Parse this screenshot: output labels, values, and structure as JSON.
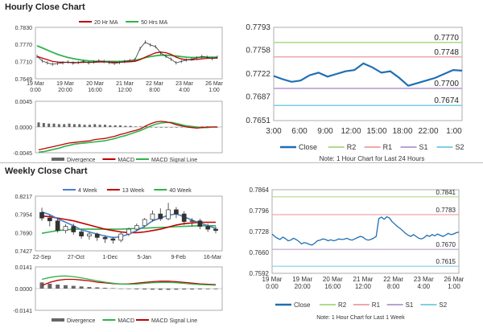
{
  "sections": {
    "hourly_title": "Hourly Close Chart",
    "weekly_title": "Weekly Close Chart"
  },
  "colors": {
    "ma_red": "#c00000",
    "ma_green": "#2fb34a",
    "ma_blue": "#4a7ec8",
    "close": "#1f6fb3",
    "r2": "#b5d98c",
    "r1": "#f0a8a8",
    "s1": "#b8a3d1",
    "s2": "#7fd0e6",
    "divergence": "#666666"
  },
  "chart_data": [
    {
      "id": "hourly_price",
      "type": "line",
      "legend": [
        "20 Hr MA",
        "50 Hrs MA"
      ],
      "ylim": [
        0.7649,
        0.783
      ],
      "yticks": [
        "0.7830",
        "0.7770",
        "0.7710",
        "0.7649"
      ],
      "xticks": [
        "19 Mar\n0:00",
        "19 Mar\n20:00",
        "20 Mar\n16:00",
        "21 Mar\n12:00",
        "22 Mar\n8:00",
        "23 Mar\n4:00",
        "26 Mar\n1:00"
      ],
      "price": [
        0.7728,
        0.7712,
        0.7705,
        0.77,
        0.7703,
        0.7705,
        0.7708,
        0.7704,
        0.7706,
        0.771,
        0.7705,
        0.7708,
        0.7712,
        0.771,
        0.7706,
        0.7703,
        0.7706,
        0.771,
        0.7713,
        0.7716,
        0.7755,
        0.7778,
        0.7768,
        0.7762,
        0.774,
        0.7728,
        0.7718,
        0.7705,
        0.771,
        0.7715,
        0.7718,
        0.7722,
        0.7728,
        0.7725,
        0.772,
        0.7725
      ],
      "series": [
        {
          "name": "20 Hr MA",
          "values": [
            0.7728,
            0.7722,
            0.7716,
            0.771,
            0.7708,
            0.7707,
            0.7707,
            0.7706,
            0.7706,
            0.7707,
            0.7707,
            0.7707,
            0.7708,
            0.7708,
            0.7708,
            0.7707,
            0.7707,
            0.7708,
            0.7709,
            0.771,
            0.7716,
            0.7725,
            0.7733,
            0.774,
            0.7743,
            0.7741,
            0.7735,
            0.7725,
            0.7719,
            0.7716,
            0.7716,
            0.7717,
            0.7719,
            0.7721,
            0.7721,
            0.7722
          ]
        },
        {
          "name": "50 Hrs MA",
          "values": [
            0.7765,
            0.7758,
            0.775,
            0.7742,
            0.7735,
            0.7729,
            0.7724,
            0.772,
            0.7717,
            0.7714,
            0.7712,
            0.7711,
            0.771,
            0.771,
            0.771,
            0.771,
            0.771,
            0.7711,
            0.7712,
            0.7714,
            0.7718,
            0.7723,
            0.7727,
            0.773,
            0.7732,
            0.7732,
            0.7731,
            0.7729,
            0.7727,
            0.7725,
            0.7724,
            0.7724,
            0.7725,
            0.7725,
            0.7725,
            0.7725
          ]
        }
      ]
    },
    {
      "id": "hourly_macd",
      "type": "bar",
      "legend": [
        "Divergence",
        "MACD",
        "MACD Signal Line"
      ],
      "ylim": [
        -0.0045,
        0.0045
      ],
      "yticks": [
        "0.0045",
        "0.0000",
        "-0.0045"
      ],
      "divergence": [
        0.0008,
        0.0007,
        0.0006,
        0.0006,
        0.0005,
        0.0005,
        0.0006,
        0.0005,
        0.0005,
        0.0004,
        0.0004,
        0.0005,
        0.0004,
        0.0004,
        0.0003,
        0.0003,
        0.0003,
        0.0002,
        0.0002,
        0.0001,
        0.0001,
        0.0001,
        0.0,
        -0.0001,
        -0.0001,
        -0.0001,
        -0.0001,
        -0.0001,
        0.0,
        0.0,
        0.0,
        0.0,
        0.0001,
        0.0001,
        0.0,
        0.0
      ],
      "series": [
        {
          "name": "MACD",
          "values": [
            -0.004,
            -0.0038,
            -0.0036,
            -0.0034,
            -0.0032,
            -0.003,
            -0.0028,
            -0.0027,
            -0.0026,
            -0.0025,
            -0.0024,
            -0.0022,
            -0.0021,
            -0.002,
            -0.0018,
            -0.0016,
            -0.0013,
            -0.0011,
            -0.0008,
            -0.0006,
            -0.0003,
            0.0002,
            0.0006,
            0.0009,
            0.001,
            0.0009,
            0.0007,
            0.0004,
            0.0002,
            0.0,
            -0.0001,
            -0.0002,
            -0.0001,
            0.0,
            0.0,
            0.0
          ]
        },
        {
          "name": "MACD Signal Line",
          "values": [
            -0.0044,
            -0.0043,
            -0.0041,
            -0.0039,
            -0.0037,
            -0.0034,
            -0.0032,
            -0.003,
            -0.0029,
            -0.0028,
            -0.0027,
            -0.0026,
            -0.0025,
            -0.0024,
            -0.0022,
            -0.002,
            -0.0017,
            -0.0015,
            -0.0012,
            -0.0009,
            -0.0006,
            -0.0002,
            0.0002,
            0.0005,
            0.0007,
            0.0008,
            0.0008,
            0.0006,
            0.0004,
            0.0002,
            0.0001,
            0.0,
            -0.0001,
            -0.0001,
            0.0,
            0.0
          ]
        }
      ]
    },
    {
      "id": "hourly_pivots",
      "type": "line",
      "ylim": [
        0.7651,
        0.7793
      ],
      "yticks": [
        "0.7793",
        "0.7758",
        "0.7722",
        "0.7687",
        "0.7651"
      ],
      "xticks": [
        "3:00",
        "6:00",
        "9:00",
        "12:00",
        "15:00",
        "18:00",
        "22:00",
        "1:00"
      ],
      "legend": [
        "Close",
        "R2",
        "R1",
        "S1",
        "S2"
      ],
      "levels": {
        "R2": 0.777,
        "R1": 0.7748,
        "S1": 0.77,
        "S2": 0.7674
      },
      "level_labels": {
        "R2": "0.7770",
        "R1": "0.7748",
        "S1": "0.7700",
        "S2": "0.7674"
      },
      "close": [
        0.7719,
        0.7714,
        0.771,
        0.7712,
        0.772,
        0.7724,
        0.7718,
        0.7722,
        0.7726,
        0.7728,
        0.7738,
        0.7732,
        0.7724,
        0.7726,
        0.7716,
        0.7704,
        0.7708,
        0.7712,
        0.7716,
        0.7722,
        0.7728,
        0.7727
      ],
      "note": "Note: 1 Hour Chart for Last 24 Hours"
    },
    {
      "id": "weekly_price",
      "type": "line",
      "legend": [
        "4 Week",
        "13 Week",
        "40 Week"
      ],
      "ylim": [
        0.7427,
        0.8217
      ],
      "yticks": [
        "0.8217",
        "0.7954",
        "0.7690",
        "0.7427"
      ],
      "xticks": [
        "22-Sep",
        "27-Oct",
        "1-Dec",
        "5-Jan",
        "9-Feb",
        "16-Mar"
      ],
      "candles": [
        {
          "o": 0.798,
          "c": 0.79,
          "h": 0.805,
          "l": 0.786
        },
        {
          "o": 0.79,
          "c": 0.786,
          "h": 0.795,
          "l": 0.778
        },
        {
          "o": 0.786,
          "c": 0.772,
          "h": 0.79,
          "l": 0.769
        },
        {
          "o": 0.772,
          "c": 0.778,
          "h": 0.781,
          "l": 0.768
        },
        {
          "o": 0.778,
          "c": 0.77,
          "h": 0.782,
          "l": 0.766
        },
        {
          "o": 0.77,
          "c": 0.764,
          "h": 0.773,
          "l": 0.76
        },
        {
          "o": 0.764,
          "c": 0.767,
          "h": 0.77,
          "l": 0.759
        },
        {
          "o": 0.767,
          "c": 0.762,
          "h": 0.769,
          "l": 0.757
        },
        {
          "o": 0.762,
          "c": 0.76,
          "h": 0.765,
          "l": 0.754
        },
        {
          "o": 0.76,
          "c": 0.758,
          "h": 0.763,
          "l": 0.753
        },
        {
          "o": 0.758,
          "c": 0.767,
          "h": 0.77,
          "l": 0.755
        },
        {
          "o": 0.767,
          "c": 0.774,
          "h": 0.776,
          "l": 0.764
        },
        {
          "o": 0.774,
          "c": 0.779,
          "h": 0.782,
          "l": 0.771
        },
        {
          "o": 0.779,
          "c": 0.788,
          "h": 0.79,
          "l": 0.777
        },
        {
          "o": 0.788,
          "c": 0.796,
          "h": 0.801,
          "l": 0.785
        },
        {
          "o": 0.796,
          "c": 0.789,
          "h": 0.804,
          "l": 0.786
        },
        {
          "o": 0.789,
          "c": 0.802,
          "h": 0.812,
          "l": 0.787
        },
        {
          "o": 0.802,
          "c": 0.796,
          "h": 0.806,
          "l": 0.79
        },
        {
          "o": 0.796,
          "c": 0.785,
          "h": 0.8,
          "l": 0.78
        },
        {
          "o": 0.785,
          "c": 0.786,
          "h": 0.79,
          "l": 0.778
        },
        {
          "o": 0.786,
          "c": 0.778,
          "h": 0.789,
          "l": 0.774
        },
        {
          "o": 0.778,
          "c": 0.774,
          "h": 0.782,
          "l": 0.77
        },
        {
          "o": 0.774,
          "c": 0.772,
          "h": 0.778,
          "l": 0.768
        }
      ],
      "series": [
        {
          "name": "4 Week",
          "values": [
            0.799,
            0.795,
            0.789,
            0.784,
            0.779,
            0.773,
            0.77,
            0.767,
            0.764,
            0.762,
            0.763,
            0.767,
            0.772,
            0.778,
            0.786,
            0.79,
            0.794,
            0.796,
            0.792,
            0.787,
            0.783,
            0.779,
            0.775
          ]
        },
        {
          "name": "13 Week",
          "values": [
            0.793,
            0.792,
            0.79,
            0.788,
            0.786,
            0.783,
            0.78,
            0.777,
            0.774,
            0.772,
            0.77,
            0.769,
            0.769,
            0.77,
            0.772,
            0.774,
            0.777,
            0.78,
            0.782,
            0.783,
            0.784,
            0.784,
            0.784
          ]
        },
        {
          "name": "40 Week",
          "values": [
            0.768,
            0.77,
            0.772,
            0.773,
            0.774,
            0.774,
            0.774,
            0.774,
            0.774,
            0.774,
            0.774,
            0.7745,
            0.775,
            0.7755,
            0.776,
            0.7765,
            0.777,
            0.7775,
            0.778,
            0.7785,
            0.779,
            0.779,
            0.779
          ]
        }
      ]
    },
    {
      "id": "weekly_macd",
      "type": "bar",
      "legend": [
        "Divergence",
        "MACD",
        "MACD Signal Line"
      ],
      "ylim": [
        -0.0141,
        0.0141
      ],
      "yticks": [
        "0.0141",
        "0.0000",
        "-0.0141"
      ],
      "divergence": [
        0.004,
        0.0032,
        0.0026,
        0.0022,
        0.0018,
        0.0014,
        0.001,
        0.0008,
        0.0005,
        0.0003,
        0.0,
        -0.0003,
        -0.0005,
        -0.0006,
        -0.0007,
        -0.0008,
        -0.0008,
        -0.0007,
        -0.0006,
        -0.0006,
        -0.0005,
        -0.0004,
        -0.0004
      ],
      "series": [
        {
          "name": "MACD",
          "values": [
            0.006,
            0.0072,
            0.008,
            0.0082,
            0.0078,
            0.007,
            0.006,
            0.005,
            0.0042,
            0.0035,
            0.003,
            0.0028,
            0.003,
            0.0034,
            0.0038,
            0.004,
            0.004,
            0.0038,
            0.0034,
            0.003,
            0.0026,
            0.0024,
            0.0022
          ]
        },
        {
          "name": "MACD Signal Line",
          "values": [
            0.002,
            0.004,
            0.0054,
            0.006,
            0.006,
            0.0056,
            0.005,
            0.0042,
            0.0037,
            0.0032,
            0.003,
            0.0031,
            0.0035,
            0.004,
            0.0045,
            0.0048,
            0.0048,
            0.0045,
            0.004,
            0.0036,
            0.0031,
            0.0028,
            0.0026
          ]
        }
      ]
    },
    {
      "id": "weekly_pivots",
      "type": "line",
      "ylim": [
        0.7592,
        0.7864
      ],
      "yticks": [
        "0.7864",
        "0.7796",
        "0.7728",
        "0.7660",
        "0.7592"
      ],
      "xticks": [
        "19 Mar\n0:00",
        "19 Mar\n20:00",
        "20 Mar\n16:00",
        "21 Mar\n12:00",
        "22 Mar\n8:00",
        "23 Mar\n4:00",
        "26 Mar\n1:00"
      ],
      "legend": [
        "Close",
        "R2",
        "R1",
        "S1",
        "S2"
      ],
      "levels": {
        "R2": 0.7841,
        "R1": 0.7783,
        "S1": 0.767,
        "S2": 0.7615
      },
      "level_labels": {
        "R2": "0.7841",
        "R1": "0.7783",
        "S1": "0.7670",
        "S2": "0.7615"
      },
      "close": [
        0.772,
        0.7712,
        0.7706,
        0.7702,
        0.771,
        0.7705,
        0.7698,
        0.77,
        0.7706,
        0.7702,
        0.7696,
        0.7688,
        0.7692,
        0.769,
        0.7686,
        0.7684,
        0.769,
        0.7698,
        0.77,
        0.7704,
        0.7702,
        0.7698,
        0.7701,
        0.7698,
        0.77,
        0.7704,
        0.7702,
        0.7703,
        0.7706,
        0.7702,
        0.77,
        0.7704,
        0.7708,
        0.7712,
        0.771,
        0.7703,
        0.77,
        0.7702,
        0.7706,
        0.7712,
        0.777,
        0.7775,
        0.7768,
        0.7776,
        0.7772,
        0.776,
        0.7752,
        0.7744,
        0.7738,
        0.773,
        0.7722,
        0.7716,
        0.7712,
        0.7718,
        0.7712,
        0.7706,
        0.7704,
        0.7708,
        0.7716,
        0.7712,
        0.7718,
        0.7714,
        0.772,
        0.7716,
        0.7712,
        0.7716,
        0.7722,
        0.7718,
        0.772,
        0.7724,
        0.7726
      ],
      "note": "Note: 1 Hour Chart for Last 1 Week"
    }
  ]
}
